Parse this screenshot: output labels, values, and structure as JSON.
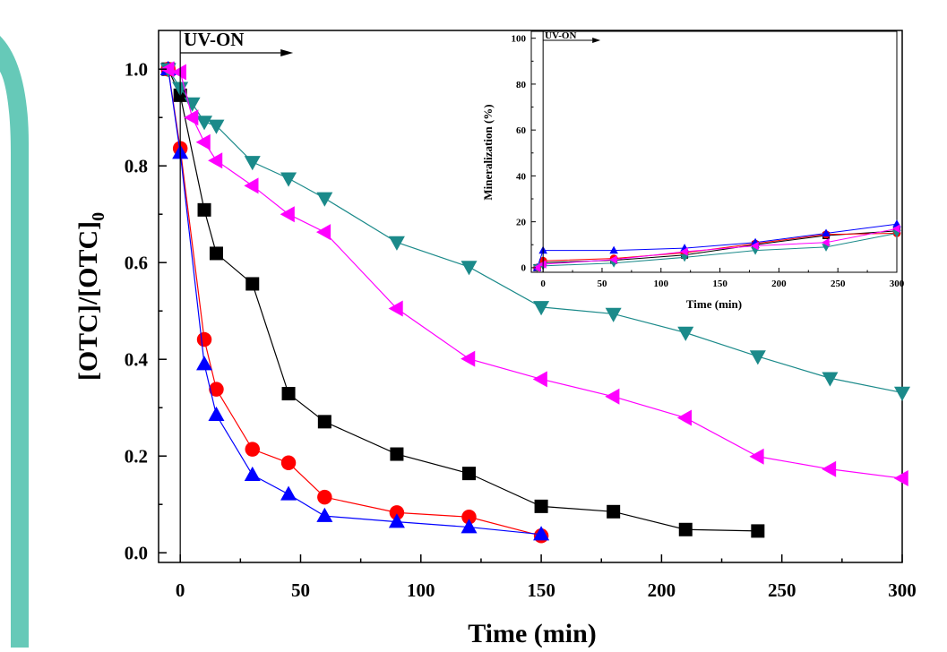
{
  "colors": {
    "sidebar": "#66c9b8",
    "black": "#000000",
    "red": "#ff0000",
    "blue": "#0000ff",
    "magenta": "#ff00ff",
    "teal": "#1b8a8a"
  },
  "chart_data": [
    {
      "type": "line",
      "title": "",
      "xlabel": "Time (min)",
      "ylabel": "[OTC]/[OTC]0",
      "ylabel_main": "[OTC]/[OTC]",
      "ylabel_sub": "0",
      "xlim": [
        -9,
        300
      ],
      "ylim": [
        -0.02,
        1.08
      ],
      "xticks": [
        0,
        50,
        100,
        150,
        200,
        250,
        300
      ],
      "yticks": [
        0.0,
        0.2,
        0.4,
        0.6,
        0.8,
        1.0
      ],
      "ytick_labels": [
        "0.0",
        "0.2",
        "0.4",
        "0.6",
        "0.8",
        "1.0"
      ],
      "annotation": "UV-ON",
      "uv_on_x": 0,
      "legend": "none",
      "grid": false,
      "series": [
        {
          "marker": "square",
          "color": "#000000",
          "x": [
            -5,
            0,
            10,
            15,
            30,
            45,
            60,
            90,
            120,
            150,
            180,
            210,
            240
          ],
          "y": [
            1.0,
            0.946,
            0.709,
            0.619,
            0.556,
            0.329,
            0.271,
            0.204,
            0.164,
            0.096,
            0.085,
            0.048,
            0.045
          ]
        },
        {
          "marker": "circle",
          "color": "#ff0000",
          "x": [
            -5,
            0,
            10,
            15,
            30,
            45,
            60,
            90,
            120,
            150
          ],
          "y": [
            1.0,
            0.836,
            0.441,
            0.338,
            0.214,
            0.186,
            0.115,
            0.083,
            0.074,
            0.035
          ]
        },
        {
          "marker": "triangle-up",
          "color": "#0000ff",
          "x": [
            -5,
            0,
            10,
            15,
            30,
            45,
            60,
            90,
            120,
            150
          ],
          "y": [
            1.0,
            0.827,
            0.39,
            0.285,
            0.161,
            0.121,
            0.076,
            0.064,
            0.053,
            0.038
          ]
        },
        {
          "marker": "triangle-down",
          "color": "#1b8a8a",
          "x": [
            -5,
            0,
            5,
            10,
            15,
            30,
            45,
            60,
            90,
            120,
            150,
            180,
            210,
            240,
            270,
            300
          ],
          "y": [
            1.0,
            0.961,
            0.929,
            0.891,
            0.883,
            0.808,
            0.774,
            0.733,
            0.642,
            0.591,
            0.508,
            0.494,
            0.455,
            0.406,
            0.361,
            0.331
          ]
        },
        {
          "marker": "triangle-left",
          "color": "#ff00ff",
          "x": [
            -5,
            0,
            5,
            10,
            15,
            30,
            45,
            60,
            90,
            120,
            150,
            180,
            210,
            240,
            270,
            300
          ],
          "y": [
            1.0,
            0.994,
            0.9,
            0.849,
            0.811,
            0.759,
            0.7,
            0.663,
            0.505,
            0.401,
            0.359,
            0.323,
            0.279,
            0.199,
            0.173,
            0.154
          ]
        }
      ]
    },
    {
      "type": "line",
      "title": "",
      "xlabel": "Time (min)",
      "ylabel": "Mineralization (%)",
      "xlim": [
        -10,
        300
      ],
      "ylim": [
        -2,
        103
      ],
      "xticks": [
        0,
        50,
        100,
        150,
        200,
        250,
        300
      ],
      "yticks": [
        0,
        20,
        40,
        60,
        80,
        100
      ],
      "annotation": "UV-ON",
      "uv_on_x": 0,
      "legend": "none",
      "grid": false,
      "series": [
        {
          "marker": "square",
          "color": "#000000",
          "x": [
            -5,
            0,
            60,
            120,
            180,
            240,
            300
          ],
          "y": [
            0,
            2.2,
            3.2,
            5.5,
            10,
            14,
            16
          ]
        },
        {
          "marker": "circle",
          "color": "#ff0000",
          "x": [
            -5,
            0,
            60,
            120,
            180,
            240,
            300
          ],
          "y": [
            0,
            3,
            4,
            6.5,
            10.5,
            14.5,
            15
          ]
        },
        {
          "marker": "triangle-up",
          "color": "#0000ff",
          "x": [
            -5,
            0,
            60,
            120,
            180,
            240,
            300
          ],
          "y": [
            0,
            7.5,
            7.5,
            8.5,
            11,
            15,
            19
          ]
        },
        {
          "marker": "triangle-down",
          "color": "#1b8a8a",
          "x": [
            -5,
            0,
            60,
            120,
            180,
            240,
            300
          ],
          "y": [
            0,
            0.8,
            2,
            4.5,
            7.5,
            9,
            15
          ]
        },
        {
          "marker": "triangle-left",
          "color": "#ff00ff",
          "x": [
            -5,
            0,
            60,
            120,
            180,
            240,
            300
          ],
          "y": [
            0,
            1.5,
            3.5,
            7,
            9.5,
            11,
            17
          ]
        }
      ]
    }
  ]
}
